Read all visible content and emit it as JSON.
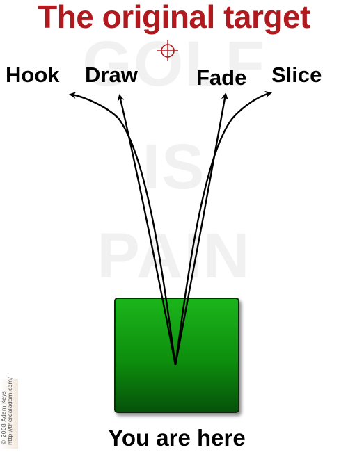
{
  "title": "The original target",
  "watermark": {
    "line1": "GOLF",
    "line2": "IS",
    "line3": "PAIN"
  },
  "shots": {
    "hook": "Hook",
    "draw": "Draw",
    "fade": "Fade",
    "slice": "Slice"
  },
  "start_label": "You are here",
  "credit": {
    "line1": "© 2008 Adam Keys",
    "line2": "http://therealadam.com/"
  },
  "colors": {
    "title": "#b0191e",
    "tee_box": "#13a013",
    "target": "#b0191e",
    "arrows": "#000000"
  },
  "icons": {
    "target": "crosshair-target-icon"
  }
}
